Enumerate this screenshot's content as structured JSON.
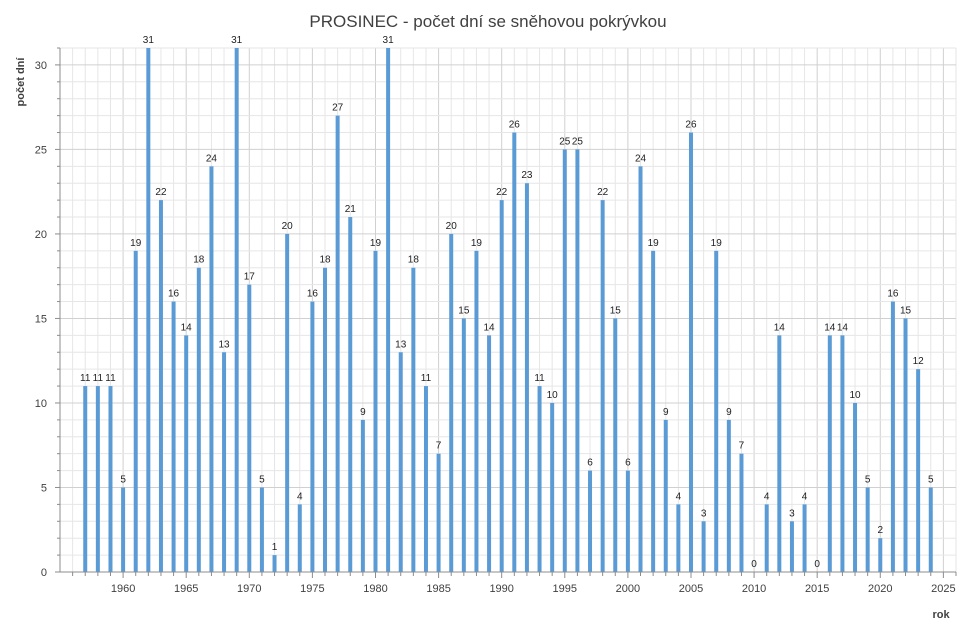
{
  "chart_data": {
    "type": "bar",
    "title": "PROSINEC - počet dní se sněhovou pokrývkou",
    "xlabel": "rok",
    "ylabel": "počet dní",
    "xlim": [
      1955,
      2026
    ],
    "ylim": [
      0,
      31
    ],
    "x_ticks": [
      1960,
      1965,
      1970,
      1975,
      1980,
      1985,
      1990,
      1995,
      2000,
      2005,
      2010,
      2015,
      2020,
      2025
    ],
    "y_ticks": [
      0,
      5,
      10,
      15,
      20,
      25,
      30
    ],
    "grid": true,
    "bar_color": "#5b9bd5",
    "x": [
      1957,
      1958,
      1959,
      1960,
      1961,
      1962,
      1963,
      1964,
      1965,
      1966,
      1967,
      1968,
      1969,
      1970,
      1971,
      1972,
      1973,
      1974,
      1975,
      1976,
      1977,
      1978,
      1979,
      1980,
      1981,
      1982,
      1983,
      1984,
      1985,
      1986,
      1987,
      1988,
      1989,
      1990,
      1991,
      1992,
      1993,
      1994,
      1995,
      1996,
      1997,
      1998,
      1999,
      2000,
      2001,
      2002,
      2003,
      2004,
      2005,
      2006,
      2007,
      2008,
      2009,
      2010,
      2011,
      2012,
      2013,
      2014,
      2015,
      2016,
      2017,
      2018,
      2019,
      2020,
      2021,
      2022,
      2023,
      2024
    ],
    "values": [
      11,
      11,
      11,
      5,
      19,
      31,
      22,
      16,
      14,
      18,
      24,
      13,
      31,
      17,
      5,
      1,
      20,
      4,
      16,
      18,
      27,
      21,
      9,
      19,
      31,
      13,
      18,
      11,
      7,
      20,
      15,
      19,
      14,
      22,
      26,
      23,
      11,
      10,
      25,
      25,
      6,
      22,
      15,
      6,
      24,
      19,
      9,
      4,
      26,
      3,
      19,
      9,
      7,
      0,
      4,
      14,
      3,
      4,
      0,
      14,
      14,
      10,
      5,
      2,
      16,
      15,
      12,
      5
    ]
  }
}
